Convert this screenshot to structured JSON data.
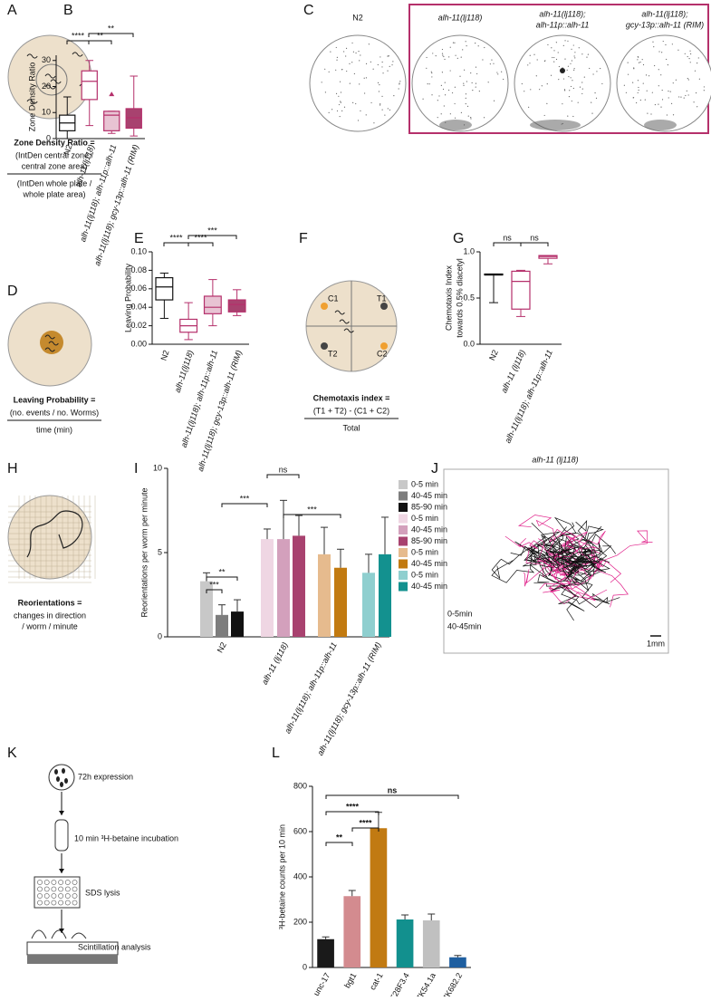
{
  "panel_labels": [
    "A",
    "B",
    "C",
    "D",
    "E",
    "F",
    "G",
    "H",
    "I",
    "J",
    "K",
    "L"
  ],
  "diagrams": {
    "A": {
      "formula": "Zone Density Ratio =",
      "numerator": [
        "(IntDen central zone /",
        "central zone area)"
      ],
      "denominator": [
        "(IntDen whole plate /",
        "whole plate area)"
      ]
    },
    "C": {
      "titles": [
        [
          "N2"
        ],
        [
          "alh-11(lj118)"
        ],
        [
          "alh-11(lj118);",
          "alh-11p::alh-11"
        ],
        [
          "alh-11(lj118);",
          "gcy-13p::alh-11 (RIM)"
        ]
      ]
    },
    "D": {
      "formula": "Leaving Probability =",
      "numerator": [
        "(no. events / no. Worms)"
      ],
      "denominator": [
        "time (min)"
      ]
    },
    "F": {
      "formula": "Chemotaxis index =",
      "numerator": [
        "(T1 + T2) - (C1 + C2)"
      ],
      "denominator": [
        "Total"
      ],
      "points": [
        "C1",
        "T1",
        "T2",
        "C2"
      ]
    },
    "H": {
      "formula": "Reorientations =",
      "lines": [
        "changes in direction",
        "/ worm / minute"
      ]
    },
    "J": {
      "title": "alh-11 (lj118)",
      "legend": [
        "0-5min",
        "40-45min"
      ],
      "scale": "1mm"
    },
    "K": {
      "steps": [
        "72h expression",
        "10 min ³H-betaine incubation",
        "SDS lysis",
        "Scintillation analysis"
      ]
    }
  },
  "chart_data": [
    {
      "type": "box",
      "ylabel": "Zone Density Ratio",
      "categories": [
        "N2",
        "alh-11(lj118)",
        "alh-11(lj118); alh-11p::alh-11",
        "alh-11(lj118); gcy-13p::alh-11 (RIM)"
      ],
      "boxes": [
        {
          "min": 0,
          "q1": 3,
          "median": 6,
          "q3": 9,
          "max": 16
        },
        {
          "min": 5,
          "q1": 15,
          "median": 22,
          "q3": 26,
          "max": 30
        },
        {
          "min": 2,
          "q1": 3,
          "median": 9,
          "q3": 10.5,
          "max": 10.5,
          "outliers": [
            17
          ]
        },
        {
          "min": 1,
          "q1": 4,
          "median": 8,
          "q3": 11.5,
          "max": 24
        }
      ],
      "colors": [
        "#111111",
        "#b5306b",
        "#b5306b",
        "#b5306b"
      ],
      "fills": [
        "#ffffff",
        "#ffffff",
        "#e8c3d3",
        "#a8426f"
      ],
      "ylim": [
        0,
        32
      ],
      "yticks": [
        0,
        10,
        20,
        30
      ],
      "annotations": [
        "****",
        "**",
        "**"
      ]
    },
    {
      "type": "box",
      "ylabel": "Leaving Probability",
      "categories": [
        "N2",
        "alh-11(lj118)",
        "alh-11(lj118); alh-11p::alh-11",
        "alh-11(lj118); gcy-13p::alh-11 (RIM)"
      ],
      "boxes": [
        {
          "min": 0.028,
          "q1": 0.048,
          "median": 0.062,
          "q3": 0.072,
          "max": 0.077
        },
        {
          "min": 0.005,
          "q1": 0.013,
          "median": 0.02,
          "q3": 0.027,
          "max": 0.045
        },
        {
          "min": 0.02,
          "q1": 0.033,
          "median": 0.04,
          "q3": 0.052,
          "max": 0.07
        },
        {
          "min": 0.031,
          "q1": 0.035,
          "median": 0.043,
          "q3": 0.048,
          "max": 0.059
        }
      ],
      "colors": [
        "#111111",
        "#b5306b",
        "#b5306b",
        "#b5306b"
      ],
      "fills": [
        "#ffffff",
        "#ffffff",
        "#e8c3d3",
        "#a8426f"
      ],
      "ylim": [
        0,
        0.1
      ],
      "yticks": [
        {
          "value": 0,
          "label": "0.00"
        },
        {
          "value": 0.02,
          "label": "0.02"
        },
        {
          "value": 0.04,
          "label": "0.04"
        },
        {
          "value": 0.06,
          "label": "0.06"
        },
        {
          "value": 0.08,
          "label": "0.08"
        },
        {
          "value": 0.1,
          "label": "0.10"
        }
      ],
      "annotations": [
        "****",
        "****",
        "***"
      ]
    },
    {
      "type": "box",
      "ylabel": [
        "Chemotaxis Index",
        "towards 0.5% diacetyl"
      ],
      "categories": [
        "N2",
        "alh-11 (lj118)",
        "alh-11(lj118); alh-11p::alh-11"
      ],
      "boxes": [
        {
          "min": 0.45,
          "q1": 0.75,
          "median": 0.75,
          "q3": 0.76,
          "max": 0.76
        },
        {
          "min": 0.3,
          "q1": 0.38,
          "median": 0.68,
          "q3": 0.79,
          "max": 0.8
        },
        {
          "min": 0.87,
          "q1": 0.93,
          "median": 0.95,
          "q3": 0.96,
          "max": 0.96
        }
      ],
      "colors": [
        "#111111",
        "#b5306b",
        "#b5306b"
      ],
      "fills": [
        "#ffffff",
        "#ffffff",
        "#ffffff"
      ],
      "ylim": [
        0,
        1
      ],
      "yticks": [
        {
          "value": 0,
          "label": "0.0"
        },
        {
          "value": 0.5,
          "label": "0.5"
        },
        {
          "value": 1,
          "label": "1.0"
        }
      ],
      "annotations": [
        "ns",
        "ns"
      ]
    },
    {
      "type": "grouped",
      "ylabel": "Reorientations per worm per minute",
      "categories": [
        "N2",
        "alh-11 (lj118)",
        "alh-11(lj118); alh-11p::alh-11",
        "alh-11(lj118); gcy-13p::alh-11 (RIM)"
      ],
      "series": [
        {
          "name": "0-5 min",
          "color": "#c8c8c8",
          "values": [
            3.3,
            null,
            null,
            null
          ],
          "errors": [
            0.5,
            null,
            null,
            null
          ]
        },
        {
          "name": "40-45 min",
          "color": "#7d7d7d",
          "values": [
            1.3,
            null,
            null,
            null
          ],
          "errors": [
            0.6,
            null,
            null,
            null
          ]
        },
        {
          "name": "85-90 min",
          "color": "#111111",
          "values": [
            1.5,
            null,
            null,
            null
          ],
          "errors": [
            0.7,
            null,
            null,
            null
          ]
        },
        {
          "name": "0-5 min",
          "color": "#efd6e3",
          "values": [
            null,
            5.8,
            null,
            null
          ],
          "errors": [
            null,
            0.6,
            null,
            null
          ]
        },
        {
          "name": "40-45 min",
          "color": "#d3a0bc",
          "values": [
            null,
            5.8,
            null,
            null
          ],
          "errors": [
            null,
            2.3,
            null,
            null
          ]
        },
        {
          "name": "85-90 min",
          "color": "#a8426f",
          "values": [
            null,
            6.0,
            null,
            null
          ],
          "errors": [
            null,
            1.2,
            null,
            null
          ]
        },
        {
          "name": "0-5 min",
          "color": "#e6bb8e",
          "values": [
            null,
            null,
            4.9,
            null
          ],
          "errors": [
            null,
            null,
            1.6,
            null
          ]
        },
        {
          "name": "40-45 min",
          "color": "#c27a10",
          "values": [
            null,
            null,
            4.1,
            null
          ],
          "errors": [
            null,
            null,
            1.1,
            null
          ]
        },
        {
          "name": "0-5 min",
          "color": "#8fcfcf",
          "values": [
            null,
            null,
            null,
            3.8
          ],
          "errors": [
            null,
            null,
            null,
            1.1
          ]
        },
        {
          "name": "40-45 min",
          "color": "#13918f",
          "values": [
            null,
            null,
            null,
            4.9
          ],
          "errors": [
            null,
            null,
            null,
            2.2
          ]
        }
      ],
      "ylim": [
        0,
        10
      ],
      "yticks": [
        0,
        5,
        10
      ],
      "annotations": [
        "***",
        "**",
        "***",
        "ns",
        "***"
      ]
    },
    {
      "type": "bar",
      "ylabel": "³H-betaine counts per 10 min",
      "categories": [
        "unc-17",
        "bgt1",
        "cat-1",
        "T28F3.4",
        "ZK54.1a",
        "ZK682.2"
      ],
      "values": [
        125,
        315,
        615,
        212,
        208,
        45
      ],
      "errors": [
        10,
        25,
        70,
        20,
        28,
        8
      ],
      "colors": [
        "#1a1a1a",
        "#d38b8f",
        "#c17a12",
        "#12908e",
        "#c0c0c0",
        "#1f5fa0"
      ],
      "ylim": [
        0,
        800
      ],
      "yticks": [
        0,
        200,
        400,
        600,
        800
      ],
      "annotations": [
        "ns",
        "****",
        "****",
        "**"
      ]
    }
  ]
}
